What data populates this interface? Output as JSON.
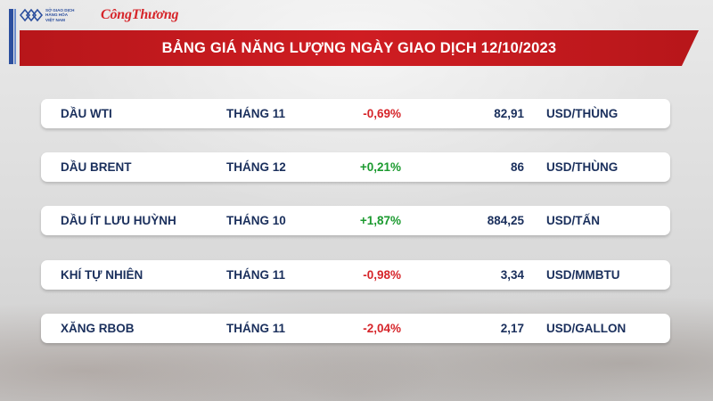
{
  "colors": {
    "banner": "#cf1d22",
    "row_bg": "#ffffff",
    "text": "#1a2f5c",
    "negative": "#d6252a",
    "positive": "#1b9a2f",
    "logo_blue": "#2c4f9e",
    "brand_red": "#d6252a"
  },
  "header": {
    "logo_icon": "wave-logo-icon",
    "logo_text": "SỞ GIAO DỊCH\nHÀNG HÓA\nVIỆT NAM",
    "brand": "CôngThương"
  },
  "title": "BẢNG GIÁ NĂNG LƯỢNG NGÀY GIAO DỊCH 12/10/2023",
  "rows": [
    {
      "name": "DẦU WTI",
      "month": "THÁNG 11",
      "change": "-0,69%",
      "direction": "down",
      "price": "82,91",
      "unit": "USD/THÙNG"
    },
    {
      "name": "DẦU BRENT",
      "month": "THÁNG 12",
      "change": "+0,21%",
      "direction": "up",
      "price": "86",
      "unit": "USD/THÙNG"
    },
    {
      "name": "DẦU ÍT LƯU HUỲNH",
      "month": "THÁNG 10",
      "change": "+1,87%",
      "direction": "up",
      "price": "884,25",
      "unit": "USD/TẤN"
    },
    {
      "name": "KHÍ TỰ NHIÊN",
      "month": "THÁNG 11",
      "change": "-0,98%",
      "direction": "down",
      "price": "3,34",
      "unit": "USD/MMBTU"
    },
    {
      "name": "XĂNG RBOB",
      "month": "THÁNG 11",
      "change": "-2,04%",
      "direction": "down",
      "price": "2,17",
      "unit": "USD/GALLON"
    }
  ]
}
